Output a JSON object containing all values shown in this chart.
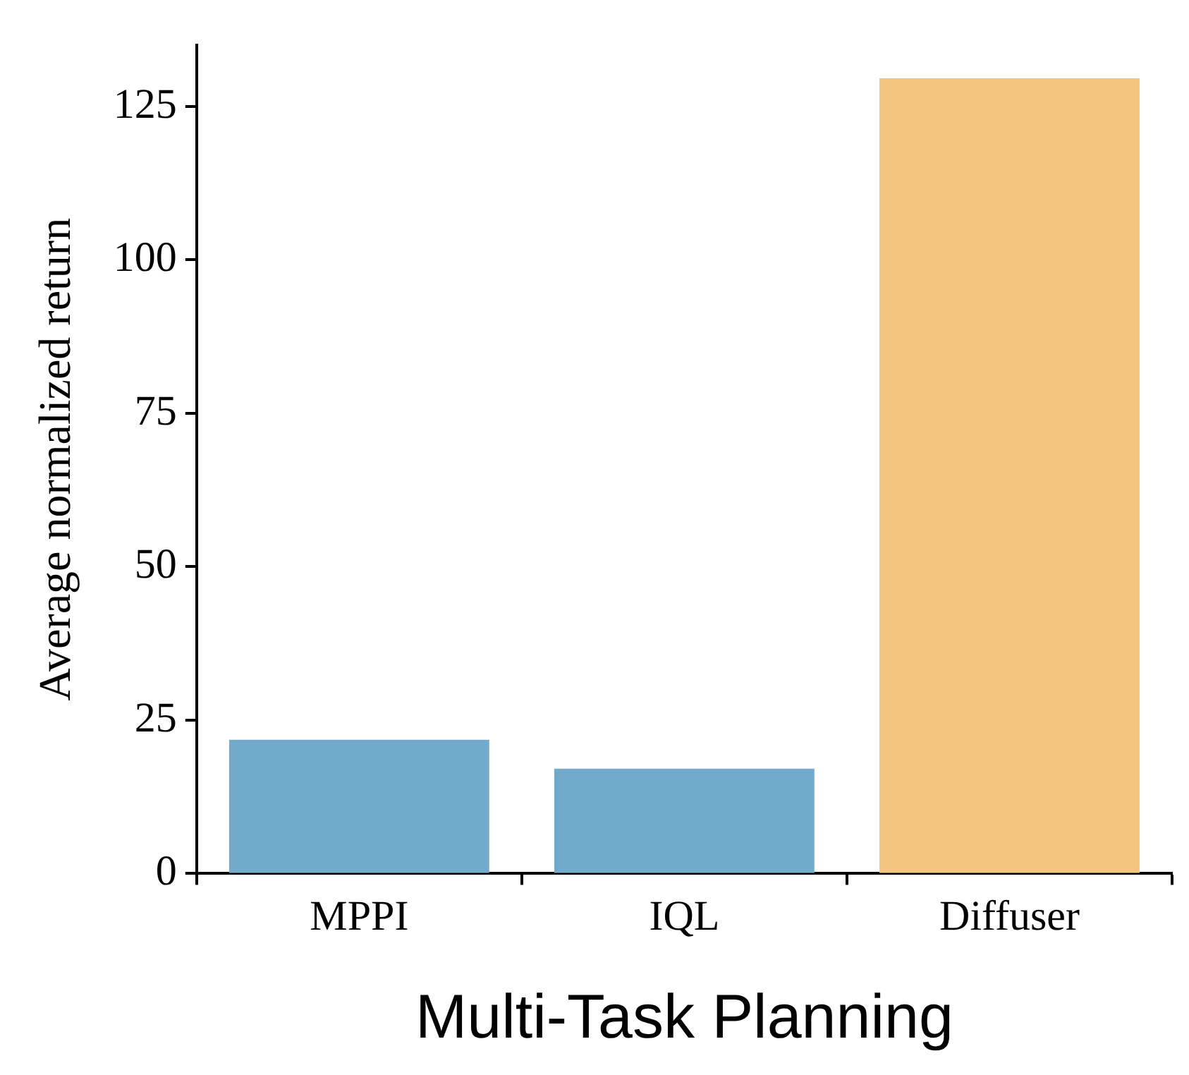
{
  "chart_data": {
    "type": "bar",
    "xlabel": "Multi-Task Planning",
    "ylabel": "Average normalized return",
    "categories": [
      "MPPI",
      "IQL",
      "Diffuser"
    ],
    "values": [
      21.8,
      17.1,
      129.6
    ],
    "colors": [
      "#71aacb",
      "#71aacb",
      "#f5c580"
    ],
    "ylim": [
      0,
      135
    ],
    "yticks": [
      0,
      25,
      50,
      75,
      100,
      125
    ],
    "grid": false,
    "legend": false
  }
}
